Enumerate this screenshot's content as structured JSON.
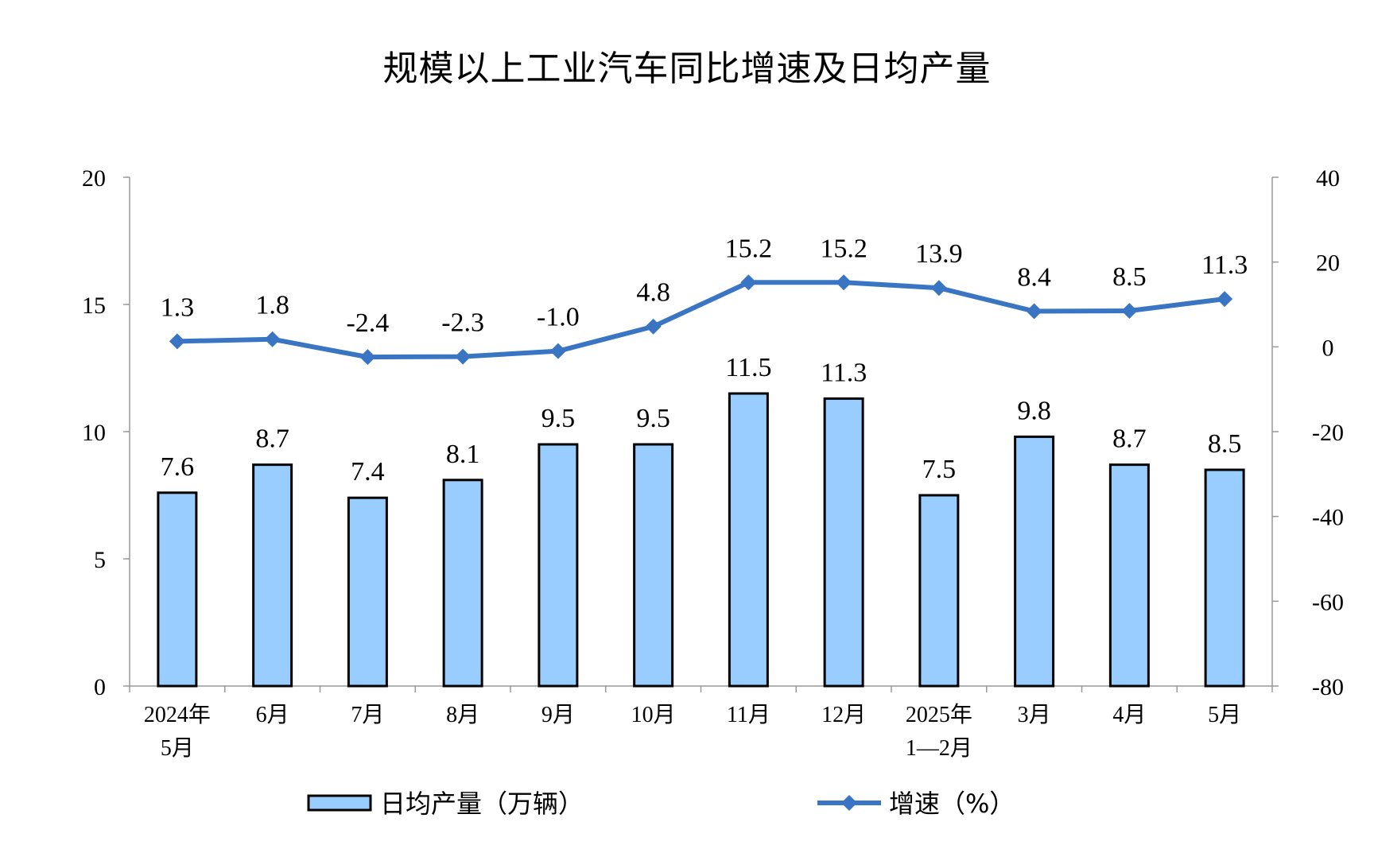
{
  "title": "规模以上工业汽车同比增速及日均产量",
  "chart_data": {
    "type": "bar",
    "categories": [
      [
        "2024年",
        "5月"
      ],
      [
        "6月"
      ],
      [
        "7月"
      ],
      [
        "8月"
      ],
      [
        "9月"
      ],
      [
        "10月"
      ],
      [
        "11月"
      ],
      [
        "12月"
      ],
      [
        "2025年",
        "1—2月"
      ],
      [
        "3月"
      ],
      [
        "4月"
      ],
      [
        "5月"
      ]
    ],
    "series": [
      {
        "name": "日均产量（万辆）",
        "type": "bar",
        "axis": "left",
        "values": [
          7.6,
          8.7,
          7.4,
          8.1,
          9.5,
          9.5,
          11.5,
          11.3,
          7.5,
          9.8,
          8.7,
          8.5
        ],
        "labels": [
          "7.6",
          "8.7",
          "7.4",
          "8.1",
          "9.5",
          "9.5",
          "11.5",
          "11.3",
          "7.5",
          "9.8",
          "8.7",
          "8.5"
        ]
      },
      {
        "name": "增速（%）",
        "type": "line",
        "axis": "right",
        "values": [
          1.3,
          1.8,
          -2.4,
          -2.3,
          -1.0,
          4.8,
          15.2,
          15.2,
          13.9,
          8.4,
          8.5,
          11.3
        ],
        "labels": [
          "1.3",
          "1.8",
          "-2.4",
          "-2.3",
          "-1.0",
          "4.8",
          "15.2",
          "15.2",
          "13.9",
          "8.4",
          "8.5",
          "11.3"
        ]
      }
    ],
    "left_axis": {
      "ylim": [
        0,
        20
      ],
      "ticks": [
        "0",
        "5",
        "10",
        "15",
        "20"
      ]
    },
    "right_axis": {
      "ylim": [
        -80,
        40
      ],
      "ticks": [
        "-80",
        "-60",
        "-40",
        "-20",
        "0",
        "20",
        "40"
      ]
    },
    "grid": false,
    "legend_position": "bottom",
    "colors": {
      "bar_fill": "#99ccff",
      "bar_stroke": "#000000",
      "line": "#3a75c4",
      "axis": "#999999"
    }
  }
}
